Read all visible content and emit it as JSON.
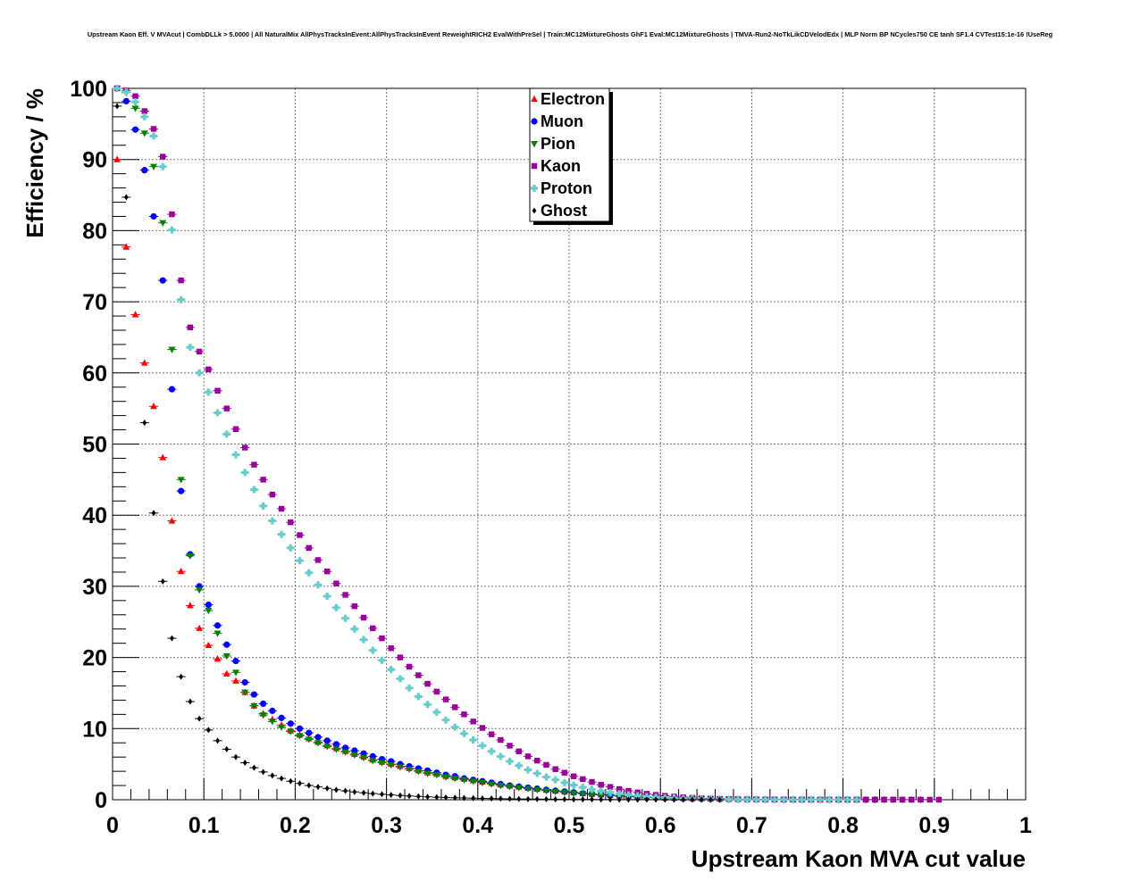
{
  "chart_data": {
    "type": "scatter",
    "title": "Upstream Kaon Eff. V MVAcut | CombDLLk > 5.0000 | All NaturalMix AllPhysTracksInEvent:AllPhysTracksInEvent ReweightRICH2 EvalWithPreSel | Train:MC12MixtureGhosts GhF1 Eval:MC12MixtureGhosts | TMVA-Run2-NoTkLikCDVelodEdx | MLP Norm BP NCycles750 CE tanh SF1.4 CVTest15:1e-16 !UseReg",
    "xlabel": "Upstream Kaon MVA cut value",
    "ylabel": "Efficiency / %",
    "xlim": [
      0,
      1
    ],
    "ylim": [
      0,
      100
    ],
    "xticks": [
      "0",
      "0.1",
      "0.2",
      "0.3",
      "0.4",
      "0.5",
      "0.6",
      "0.7",
      "0.8",
      "0.9",
      "1"
    ],
    "yticks": [
      "0",
      "10",
      "20",
      "30",
      "40",
      "50",
      "60",
      "70",
      "80",
      "90",
      "100"
    ],
    "grid": true,
    "legend_position": "top-center",
    "x": [
      0.005,
      0.015,
      0.025,
      0.035,
      0.045,
      0.055,
      0.065,
      0.075,
      0.085,
      0.095,
      0.105,
      0.115,
      0.125,
      0.135,
      0.145,
      0.155,
      0.165,
      0.175,
      0.185,
      0.195,
      0.205,
      0.215,
      0.225,
      0.235,
      0.245,
      0.255,
      0.265,
      0.275,
      0.285,
      0.295,
      0.305,
      0.315,
      0.325,
      0.335,
      0.345,
      0.355,
      0.365,
      0.375,
      0.385,
      0.395,
      0.405,
      0.415,
      0.425,
      0.435,
      0.445,
      0.455,
      0.465,
      0.475,
      0.485,
      0.495,
      0.505,
      0.515,
      0.525,
      0.535,
      0.545,
      0.555,
      0.565,
      0.575,
      0.585,
      0.595,
      0.605,
      0.615,
      0.625,
      0.635,
      0.645,
      0.655,
      0.665,
      0.675,
      0.685,
      0.695,
      0.705,
      0.715,
      0.725,
      0.735,
      0.745,
      0.755,
      0.765,
      0.775,
      0.785,
      0.795,
      0.805,
      0.815,
      0.825,
      0.835,
      0.845,
      0.855,
      0.865,
      0.875,
      0.885,
      0.895,
      0.905
    ],
    "series": [
      {
        "name": "Electron",
        "color": "#ff0000",
        "marker": "triangle-up",
        "values": [
          90,
          77.7,
          68.2,
          61.4,
          55.3,
          48.1,
          39.2,
          32.1,
          27.3,
          24.1,
          21.7,
          19.8,
          17.7,
          16.7,
          15.1,
          13.2,
          12.1,
          11.3,
          10.5,
          9.7,
          9.1,
          8.6,
          8.1,
          7.6,
          7.2,
          6.8,
          6.4,
          6,
          5.6,
          5.3,
          5,
          4.7,
          4.4,
          4.1,
          3.8,
          3.6,
          3.3,
          3.1,
          2.9,
          2.7,
          2.5,
          2.3,
          2.1,
          1.95,
          1.8,
          1.65,
          1.5,
          1.37,
          1.24,
          1.12,
          1.01,
          0.9,
          0.8,
          0.71,
          0.63,
          0.55,
          0.48,
          0.42,
          0.36,
          0.31,
          0.27,
          0.23,
          0.2,
          0.17,
          0.15,
          0.13,
          0.11,
          0.09,
          0.08,
          0.07,
          0.06,
          0.05,
          0.04,
          0.04,
          0.03,
          0.03,
          0.02,
          0.02,
          0.02,
          0.01,
          0.01,
          0.01,
          0.01,
          0.01,
          0.01,
          0.01,
          0.01,
          0.01,
          0.01,
          null,
          null
        ]
      },
      {
        "name": "Muon",
        "color": "#0000ff",
        "marker": "circle",
        "values": [
          100,
          98.2,
          94.2,
          88.5,
          82,
          73,
          57.7,
          43.4,
          34.5,
          30,
          27.4,
          24.5,
          21.8,
          19.5,
          16.5,
          14.8,
          13.5,
          12.5,
          11.5,
          10.7,
          10,
          9.4,
          8.8,
          8.3,
          7.8,
          7.3,
          6.9,
          6.5,
          6.1,
          5.7,
          5.4,
          5,
          4.7,
          4.4,
          4.1,
          3.8,
          3.5,
          3.3,
          3,
          2.8,
          2.6,
          2.4,
          2.2,
          2,
          1.85,
          1.7,
          1.55,
          1.4,
          1.27,
          1.15,
          1.03,
          0.92,
          0.82,
          0.73,
          0.64,
          0.56,
          0.49,
          0.43,
          0.37,
          0.32,
          0.27,
          0.23,
          0.2,
          0.17,
          0.14,
          0.12,
          0.1,
          0.08,
          0.07,
          0.06,
          0.05,
          0.04,
          0.03,
          0.03,
          0.02,
          0.02,
          0.02,
          0.01,
          0.01,
          0.01,
          0.01,
          0.01,
          0.01,
          0.01,
          null,
          null,
          null,
          null,
          null,
          null,
          null
        ]
      },
      {
        "name": "Pion",
        "color": "#008000",
        "marker": "triangle-down",
        "values": [
          100,
          99.4,
          97.2,
          93.7,
          89,
          81.1,
          63.3,
          45,
          34.3,
          29.5,
          26.6,
          23.4,
          20.2,
          17.9,
          15.1,
          13.2,
          11.9,
          11,
          10.2,
          9.6,
          9,
          8.5,
          8,
          7.5,
          7.1,
          6.7,
          6.3,
          5.9,
          5.5,
          5.2,
          4.9,
          4.6,
          4.3,
          4,
          3.7,
          3.5,
          3.2,
          3,
          2.8,
          2.6,
          2.4,
          2.2,
          2,
          1.85,
          1.7,
          1.55,
          1.4,
          1.27,
          1.15,
          1.03,
          0.92,
          0.82,
          0.73,
          0.64,
          0.56,
          0.49,
          0.42,
          0.36,
          0.31,
          0.26,
          0.22,
          0.19,
          0.16,
          0.13,
          0.11,
          0.09,
          0.08,
          0.07,
          0.06,
          0.05,
          0.04,
          0.03,
          0.03,
          0.02,
          0.02,
          0.02,
          0.01,
          0.01,
          0.01,
          0.01,
          0.01,
          0.01,
          0.01,
          0.01,
          0.01,
          0.01,
          0.01,
          0.01,
          0.01,
          null,
          null
        ]
      },
      {
        "name": "Kaon",
        "color": "#990099",
        "marker": "square",
        "values": [
          100,
          99.7,
          98.9,
          96.8,
          94.3,
          90.4,
          82.3,
          73,
          66.4,
          63,
          60.5,
          57.5,
          55,
          52.1,
          49.5,
          47.1,
          45,
          42.9,
          40.9,
          39,
          37.2,
          35.4,
          33.7,
          32.1,
          30.4,
          28.8,
          27.2,
          25.6,
          24.1,
          22.7,
          21.3,
          20,
          18.7,
          17.5,
          16.3,
          15.2,
          14.1,
          13,
          12,
          11,
          10.1,
          9.2,
          8.4,
          7.6,
          6.8,
          6.1,
          5.5,
          4.9,
          4.3,
          3.8,
          3.3,
          2.9,
          2.5,
          2.1,
          1.8,
          1.5,
          1.25,
          1.03,
          0.84,
          0.68,
          0.55,
          0.44,
          0.35,
          0.28,
          0.22,
          0.17,
          0.13,
          0.1,
          0.08,
          0.06,
          0.05,
          0.04,
          0.03,
          0.03,
          0.02,
          0.02,
          0.01,
          0.01,
          0.01,
          0.01,
          0.01,
          0.01,
          0.01,
          0.01,
          0.01,
          0.01,
          0.01,
          0.01,
          0.01,
          0.01,
          0.01
        ]
      },
      {
        "name": "Proton",
        "color": "#66cccc",
        "marker": "cross",
        "values": [
          100,
          99.5,
          98.1,
          96,
          93.3,
          89,
          80.1,
          70.3,
          63.6,
          60,
          57.3,
          54.4,
          51.4,
          48.5,
          46,
          43.6,
          41.3,
          39.2,
          37.3,
          35.4,
          33.6,
          31.9,
          30.2,
          28.6,
          27,
          25.5,
          24,
          22.5,
          21,
          19.6,
          18.3,
          17,
          15.7,
          14.5,
          13.4,
          12.3,
          11.2,
          10.2,
          9.3,
          8.4,
          7.6,
          6.8,
          6.1,
          5.4,
          4.8,
          4.2,
          3.7,
          3.2,
          2.8,
          2.4,
          2.05,
          1.74,
          1.47,
          1.23,
          1.02,
          0.84,
          0.69,
          0.56,
          0.45,
          0.36,
          0.29,
          0.23,
          0.18,
          0.14,
          0.11,
          0.09,
          0.07,
          0.05,
          0.04,
          0.03,
          0.03,
          0.02,
          0.02,
          0.01,
          0.01,
          0.01,
          0.01,
          0.01,
          0.01,
          0.01,
          0.01,
          0.01,
          null,
          null,
          null,
          null,
          null,
          null,
          null,
          null,
          null
        ]
      },
      {
        "name": "Ghost",
        "color": "#000000",
        "marker": "diamond",
        "values": [
          97.5,
          84.7,
          null,
          53,
          40.3,
          30.7,
          22.7,
          17.3,
          13.8,
          11.4,
          9.8,
          8.3,
          7.1,
          6,
          5.2,
          4.5,
          3.9,
          3.4,
          3,
          2.6,
          2.3,
          2,
          1.8,
          1.6,
          1.4,
          1.25,
          1.1,
          0.98,
          0.87,
          0.77,
          0.68,
          0.6,
          0.53,
          0.47,
          0.41,
          0.36,
          0.32,
          0.28,
          0.25,
          0.22,
          0.19,
          0.17,
          0.15,
          0.13,
          0.11,
          0.1,
          0.09,
          0.08,
          0.07,
          0.06,
          0.05,
          0.04,
          0.04,
          0.03,
          0.03,
          0.02,
          0.02,
          0.02,
          0.01,
          0.01,
          0.01,
          0.01,
          0.01,
          0.01,
          0.01,
          0.01,
          0.01,
          null,
          null,
          null,
          null,
          null,
          null,
          null,
          null,
          null,
          null,
          null,
          null,
          null,
          null,
          null,
          null,
          null,
          null,
          null,
          null,
          null,
          null,
          null,
          null
        ]
      }
    ]
  }
}
